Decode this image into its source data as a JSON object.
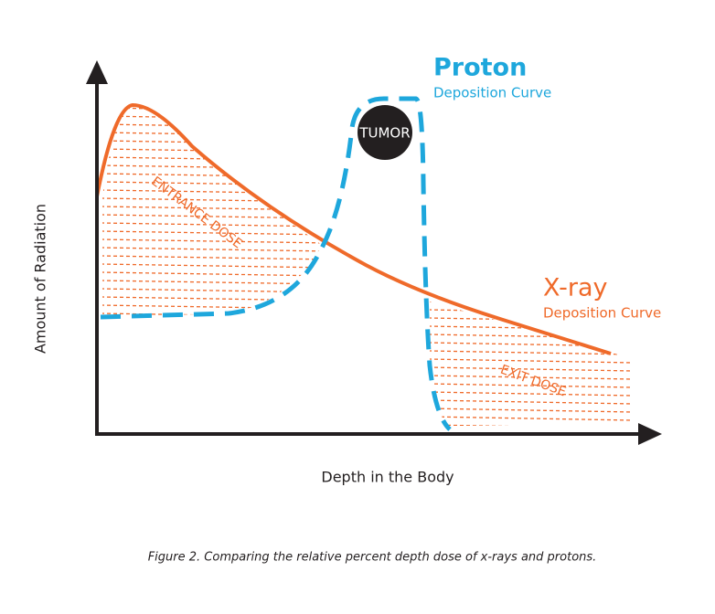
{
  "proton": {
    "title": "Proton",
    "subtitle": "Deposition Curve"
  },
  "xray": {
    "title": "X-ray",
    "subtitle": "Deposition Curve"
  },
  "tumor": "TUMOR",
  "regions": {
    "entrance": "ENTRANCE DOSE",
    "exit": "EXIT DOSE"
  },
  "axes": {
    "y": "Amount of Radiation",
    "x": "Depth in the Body"
  },
  "caption": "Figure 2. Comparing the relative percent depth dose of x-rays and protons."
}
